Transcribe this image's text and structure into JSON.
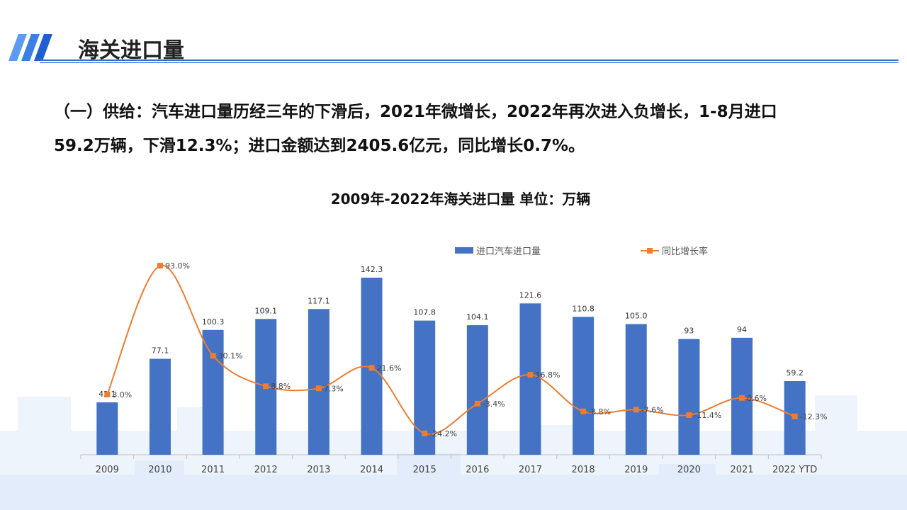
{
  "header": {
    "title": "海关进口量",
    "accent_color": "#2a6fd6"
  },
  "paragraph": {
    "line1": "（一）供给：汽车进口量历经三年的下滑后，2021年微增长，2022年再次进入负增长，1-8月进口",
    "line2": "59.2万辆，下滑12.3%；进口金额达到2405.6亿元，同比增长0.7%。"
  },
  "chart_data": {
    "type": "bar+line",
    "title": "2009年-2022年海关进口量  单位：万辆",
    "categories": [
      "2009",
      "2010",
      "2011",
      "2012",
      "2013",
      "2014",
      "2015",
      "2016",
      "2017",
      "2018",
      "2019",
      "2020",
      "2021",
      "2022 YTD"
    ],
    "series": [
      {
        "name": "进口汽车进口量",
        "type": "bar",
        "color": "#4472c4",
        "values": [
          42.1,
          77.1,
          100.3,
          109.1,
          117.1,
          142.3,
          107.8,
          104.1,
          121.6,
          110.8,
          105.0,
          93,
          94,
          59.2
        ],
        "labels": [
          "42.1",
          "77.1",
          "100.3",
          "109.1",
          "117.1",
          "142.3",
          "107.8",
          "104.1",
          "121.6",
          "110.8",
          "105.0",
          "93",
          "94",
          "59.2"
        ]
      },
      {
        "name": "同比增长率",
        "type": "line",
        "color": "#ed7d31",
        "values": [
          3.0,
          93.0,
          30.1,
          8.8,
          7.3,
          21.6,
          -24.2,
          -3.4,
          16.8,
          -8.8,
          -7.6,
          -11.4,
          0.6,
          -12.3
        ],
        "labels": [
          "3.0%",
          "93.0%",
          "30.1%",
          "8.8%",
          "7.3%",
          "21.6%",
          "-24.2%",
          "-3.4%",
          "16.8%",
          "-8.8%",
          "-7.6%",
          "-11.4%",
          "0.6%",
          "-12.3%"
        ]
      }
    ],
    "legend": "top",
    "grid": false
  }
}
